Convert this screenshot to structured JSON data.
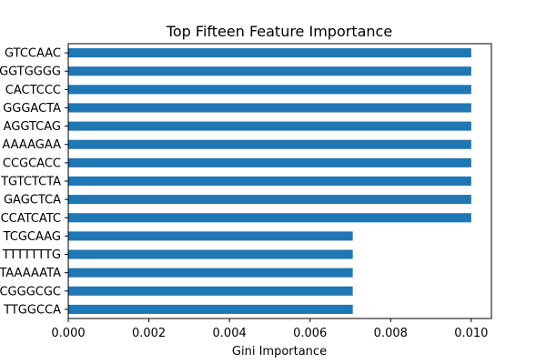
{
  "chart_data": {
    "type": "bar",
    "orientation": "horizontal",
    "title": "Top Fifteen Feature Importance",
    "xlabel": "Gini Importance",
    "ylabel": "",
    "xlim": [
      0,
      0.0105
    ],
    "xticks": [
      "0.000",
      "0.002",
      "0.004",
      "0.006",
      "0.008",
      "0.010"
    ],
    "xtick_values": [
      0,
      0.002,
      0.004,
      0.006,
      0.008,
      0.01
    ],
    "grid": false,
    "legend": "none",
    "categories": [
      "GTCCAAC",
      "GGTGGGG",
      "CACTCCC",
      "GGGACTA",
      "AGGTCAG",
      "AAAAGAA",
      "CCGCACC",
      "TGTCTCTA",
      "GAGCTCA",
      "CCATCATC",
      "TCGCAAG",
      "TTTTTTTG",
      "TAAAAATA",
      "CGGGCGC",
      "TTGGCCA"
    ],
    "values": [
      0.01,
      0.01,
      0.01,
      0.01,
      0.01,
      0.01,
      0.01,
      0.01,
      0.01,
      0.01,
      0.00706,
      0.00706,
      0.00706,
      0.00706,
      0.00706
    ],
    "bar_color": "#1f77b4"
  }
}
